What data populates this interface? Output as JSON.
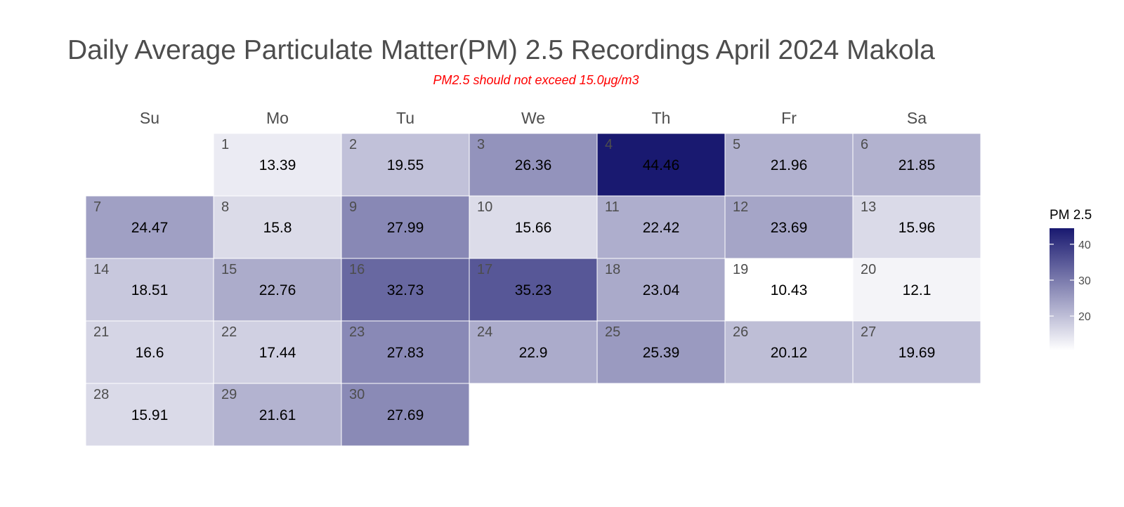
{
  "chart_data": {
    "type": "heatmap",
    "title": "Daily Average Particulate Matter(PM) 2.5 Recordings April 2024 Makola",
    "subtitle": "PM2.5 should not exceed 15.0μg/m3",
    "weekdays": [
      "Su",
      "Mo",
      "Tu",
      "We",
      "Th",
      "Fr",
      "Sa"
    ],
    "first_weekday_index": 1,
    "days": [
      1,
      2,
      3,
      4,
      5,
      6,
      7,
      8,
      9,
      10,
      11,
      12,
      13,
      14,
      15,
      16,
      17,
      18,
      19,
      20,
      21,
      22,
      23,
      24,
      25,
      26,
      27,
      28,
      29,
      30
    ],
    "values": [
      13.39,
      19.55,
      26.36,
      44.46,
      21.96,
      21.85,
      24.47,
      15.8,
      27.99,
      15.66,
      22.42,
      23.69,
      15.96,
      18.51,
      22.76,
      32.73,
      35.23,
      23.04,
      10.43,
      12.1,
      16.6,
      17.44,
      27.83,
      22.9,
      25.39,
      20.12,
      19.69,
      15.91,
      21.61,
      27.69
    ],
    "legend": {
      "title": "PM 2.5",
      "ticks": [
        20,
        30,
        40
      ],
      "range": [
        10.43,
        44.46
      ],
      "low_color": "#ffffff",
      "high_color": "#191970",
      "placement": "right"
    },
    "grid": false
  }
}
